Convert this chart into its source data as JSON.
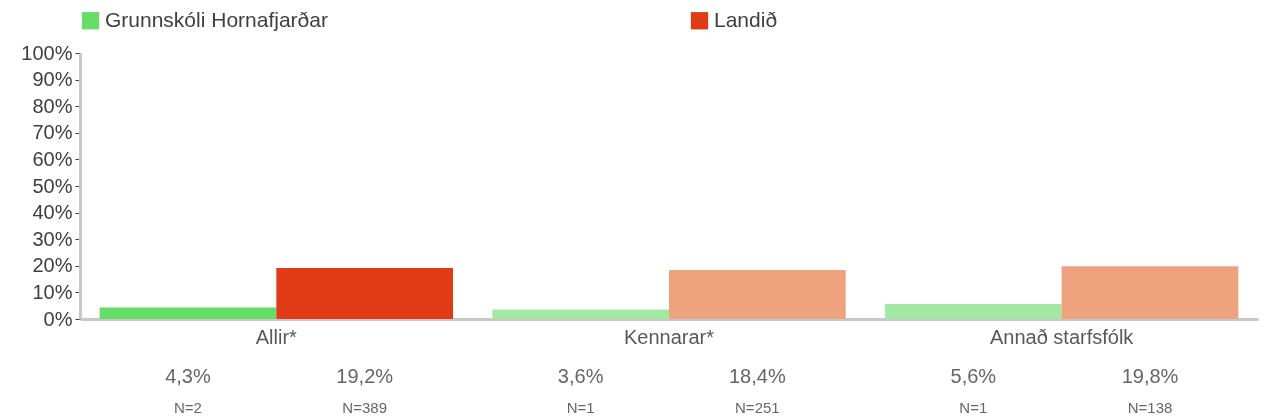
{
  "chart_data": {
    "type": "bar",
    "categories": [
      "Allir*",
      "Kennarar*",
      "Annað starfsfólk"
    ],
    "series": [
      {
        "name": "Grunnskóli Hornafjarðar",
        "color": "#66dd66",
        "colors": [
          "#66dd66",
          "#a3e9a3",
          "#a3e9a3"
        ],
        "values": [
          4.3,
          3.6,
          5.6
        ],
        "value_labels": [
          "4,3%",
          "3,6%",
          "5,6%"
        ]
      },
      {
        "name": "Landið",
        "color": "#e03a16",
        "colors": [
          "#e03a16",
          "#efa27e",
          "#efa27e"
        ],
        "values": [
          19.2,
          18.4,
          19.8
        ],
        "value_labels": [
          "19,2%",
          "18,4%",
          "19,8%"
        ]
      }
    ],
    "ylim": [
      0,
      100
    ],
    "yticks": [
      {
        "value": 0,
        "label": "0%"
      },
      {
        "value": 10,
        "label": "10%"
      },
      {
        "value": 20,
        "label": "20%"
      },
      {
        "value": 30,
        "label": "30%"
      },
      {
        "value": 40,
        "label": "40%"
      },
      {
        "value": 50,
        "label": "50%"
      },
      {
        "value": 60,
        "label": "60%"
      },
      {
        "value": 70,
        "label": "70%"
      },
      {
        "value": 80,
        "label": "80%"
      },
      {
        "value": 90,
        "label": "90%"
      },
      {
        "value": 100,
        "label": "100%"
      }
    ],
    "grid": false,
    "legend": "top",
    "annotations": [
      "N=2",
      "N=389",
      "N=1",
      "N=251",
      "N=1",
      "N=138"
    ]
  }
}
